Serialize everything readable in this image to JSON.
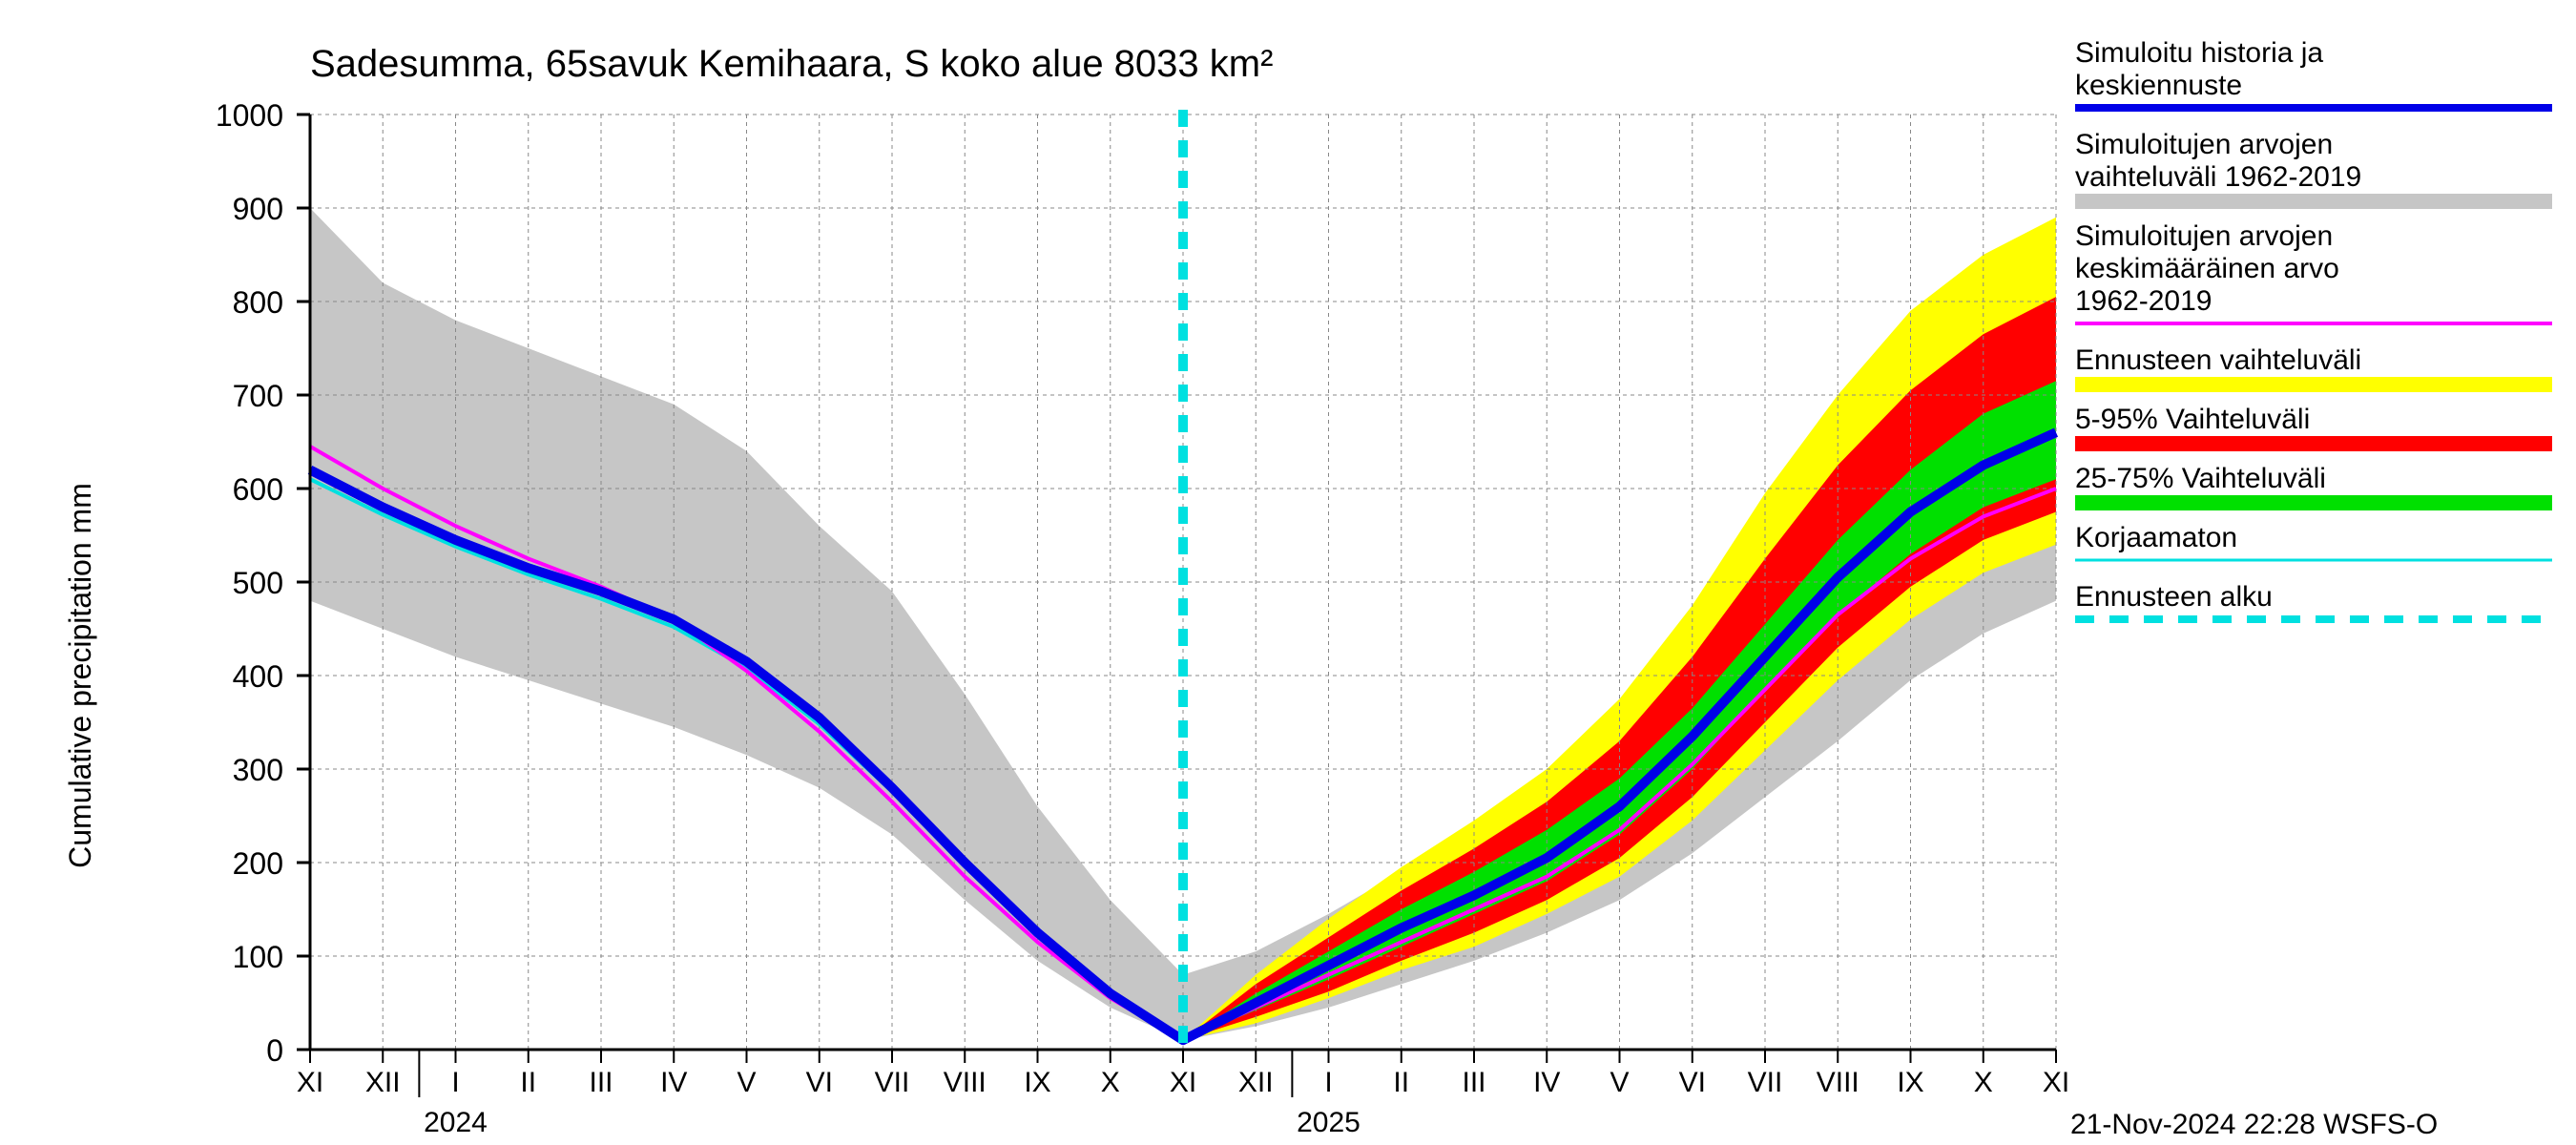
{
  "title": "Sadesumma, 65savuk Kemihaara, S koko alue 8033 km²",
  "ylabel": "Cumulative precipitation   mm",
  "footer": "21-Nov-2024 22:28 WSFS-O",
  "yaxis": {
    "min": 0,
    "max": 1000,
    "ticks": [
      0,
      100,
      200,
      300,
      400,
      500,
      600,
      700,
      800,
      900,
      1000
    ]
  },
  "xaxis": {
    "months": [
      "XI",
      "XII",
      "I",
      "II",
      "III",
      "IV",
      "V",
      "VI",
      "VII",
      "VIII",
      "IX",
      "X",
      "XI",
      "XII",
      "I",
      "II",
      "III",
      "IV",
      "V",
      "VI",
      "VII",
      "VIII",
      "IX",
      "X",
      "XI"
    ],
    "year_labels": [
      {
        "label": "2024",
        "index": 2
      },
      {
        "label": "2025",
        "index": 14
      }
    ]
  },
  "colors": {
    "bg": "#ffffff",
    "grid": "#888888",
    "axis": "#000000",
    "gray_band": "#c6c6c6",
    "yellow": "#ffff00",
    "red": "#ff0000",
    "green": "#00e000",
    "blue": "#0000e8",
    "magenta": "#ff00ff",
    "cyan": "#00e0e0",
    "dash_cyan": "#00e0e0"
  },
  "legend": [
    {
      "key": "blue",
      "label": "Simuloitu historia ja keskiennuste",
      "type": "line",
      "color": "#0000e8",
      "width": 8
    },
    {
      "key": "gray",
      "label": "Simuloitujen arvojen vaihteluväli 1962-2019",
      "type": "band",
      "color": "#c6c6c6"
    },
    {
      "key": "magenta",
      "label": "Simuloitujen arvojen keskimääräinen arvo  1962-2019",
      "type": "line",
      "color": "#ff00ff",
      "width": 4
    },
    {
      "key": "yellow",
      "label": "Ennusteen vaihteluväli",
      "type": "band",
      "color": "#ffff00"
    },
    {
      "key": "red",
      "label": "5-95% Vaihteluväli",
      "type": "band",
      "color": "#ff0000"
    },
    {
      "key": "green",
      "label": "25-75% Vaihteluväli",
      "type": "band",
      "color": "#00e000"
    },
    {
      "key": "cyan",
      "label": "Korjaamaton",
      "type": "line",
      "color": "#00e0e0",
      "width": 3
    },
    {
      "key": "dash",
      "label": "Ennusteen alku",
      "type": "dash",
      "color": "#00e0e0",
      "width": 8
    }
  ],
  "forecast_start_index": 12,
  "series": {
    "gray_upper": [
      900,
      820,
      780,
      750,
      720,
      690,
      640,
      560,
      490,
      380,
      260,
      160,
      80,
      105,
      145,
      190,
      230,
      280,
      340,
      420,
      530,
      640,
      740,
      820,
      875
    ],
    "gray_lower": [
      480,
      450,
      420,
      395,
      370,
      345,
      315,
      280,
      230,
      160,
      95,
      45,
      10,
      25,
      45,
      70,
      95,
      125,
      160,
      210,
      270,
      330,
      395,
      445,
      480
    ],
    "yellow_upper": [
      null,
      null,
      null,
      null,
      null,
      null,
      null,
      null,
      null,
      null,
      null,
      null,
      10,
      80,
      140,
      195,
      245,
      300,
      375,
      475,
      595,
      700,
      790,
      850,
      890
    ],
    "yellow_lower": [
      null,
      null,
      null,
      null,
      null,
      null,
      null,
      null,
      null,
      null,
      null,
      null,
      10,
      28,
      55,
      85,
      110,
      145,
      185,
      245,
      320,
      395,
      460,
      510,
      540
    ],
    "red_upper": [
      null,
      null,
      null,
      null,
      null,
      null,
      null,
      null,
      null,
      null,
      null,
      null,
      10,
      70,
      120,
      170,
      215,
      265,
      330,
      420,
      525,
      625,
      705,
      765,
      805
    ],
    "red_lower": [
      null,
      null,
      null,
      null,
      null,
      null,
      null,
      null,
      null,
      null,
      null,
      null,
      10,
      35,
      62,
      95,
      125,
      160,
      205,
      270,
      350,
      430,
      495,
      545,
      575
    ],
    "green_upper": [
      null,
      null,
      null,
      null,
      null,
      null,
      null,
      null,
      null,
      null,
      null,
      null,
      10,
      60,
      105,
      150,
      190,
      235,
      290,
      365,
      455,
      545,
      620,
      680,
      715
    ],
    "green_lower": [
      null,
      null,
      null,
      null,
      null,
      null,
      null,
      null,
      null,
      null,
      null,
      null,
      10,
      42,
      75,
      110,
      145,
      180,
      230,
      300,
      385,
      465,
      530,
      580,
      610
    ],
    "blue": [
      620,
      580,
      545,
      515,
      490,
      460,
      415,
      355,
      280,
      200,
      125,
      60,
      10,
      50,
      90,
      130,
      165,
      205,
      260,
      335,
      420,
      505,
      575,
      625,
      660
    ],
    "magenta": [
      645,
      600,
      560,
      525,
      495,
      460,
      405,
      340,
      265,
      185,
      115,
      55,
      10,
      45,
      80,
      115,
      150,
      185,
      235,
      305,
      385,
      465,
      525,
      570,
      600
    ],
    "cyan": [
      610,
      572,
      538,
      508,
      482,
      452,
      408,
      348,
      276,
      196,
      122,
      58,
      10,
      null,
      null,
      null,
      null,
      null,
      null,
      null,
      null,
      null,
      null,
      null,
      null
    ]
  }
}
